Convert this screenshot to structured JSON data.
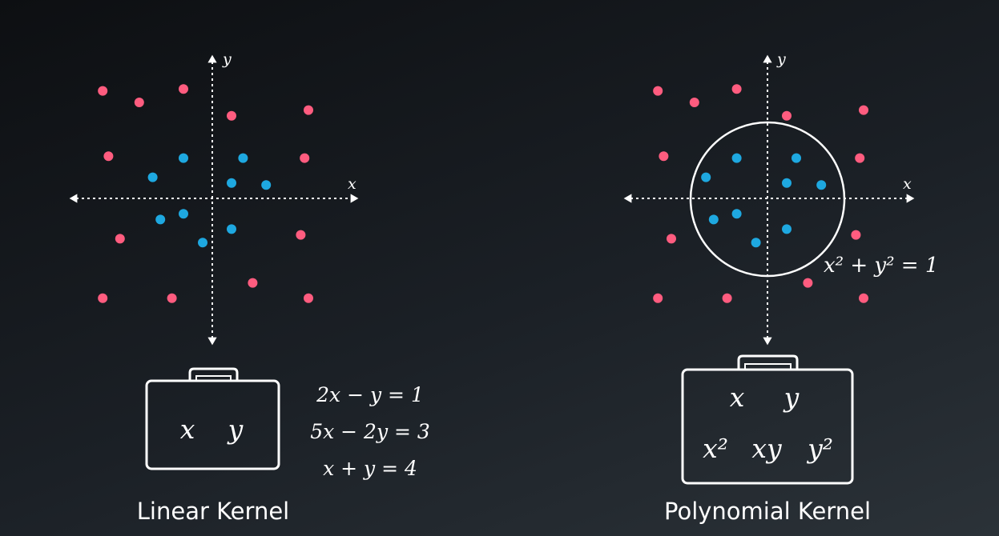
{
  "colors": {
    "outer_points": "#ff5c7f",
    "inner_points": "#1ea8e0",
    "lines": "#ffffff"
  },
  "linear": {
    "caption": "Linear Kernel",
    "x_label": "x",
    "y_label": "y",
    "box_vars": [
      "x",
      "y"
    ],
    "equations": [
      "2x − y = 1",
      "5x − 2y = 3",
      "x + y = 4"
    ],
    "outer_points": [
      [
        -2.85,
        2.8
      ],
      [
        -1.9,
        2.5
      ],
      [
        -0.75,
        2.85
      ],
      [
        0.5,
        2.15
      ],
      [
        2.5,
        2.3
      ],
      [
        -2.7,
        1.1
      ],
      [
        2.4,
        1.05
      ],
      [
        -2.4,
        -1.05
      ],
      [
        2.3,
        -0.95
      ],
      [
        1.05,
        -2.2
      ],
      [
        -2.85,
        -2.6
      ],
      [
        -1.05,
        -2.6
      ],
      [
        2.5,
        -2.6
      ]
    ],
    "inner_points": [
      [
        -0.75,
        1.05
      ],
      [
        0.8,
        1.05
      ],
      [
        -1.55,
        0.55
      ],
      [
        0.5,
        0.4
      ],
      [
        1.4,
        0.35
      ],
      [
        -1.35,
        -0.55
      ],
      [
        -0.75,
        -0.4
      ],
      [
        0.5,
        -0.8
      ],
      [
        -0.25,
        -1.15
      ]
    ]
  },
  "polynomial": {
    "caption": "Polynomial Kernel",
    "x_label": "x",
    "y_label": "y",
    "circle_label": "x² + y² = 1",
    "box_row1": [
      "x",
      "y"
    ],
    "box_row2": [
      "x²",
      "xy",
      "y²"
    ],
    "outer_points": [
      [
        -2.85,
        2.8
      ],
      [
        -1.9,
        2.5
      ],
      [
        -0.8,
        2.85
      ],
      [
        0.5,
        2.15
      ],
      [
        2.5,
        2.3
      ],
      [
        -2.7,
        1.1
      ],
      [
        2.4,
        1.05
      ],
      [
        -2.5,
        -1.05
      ],
      [
        2.3,
        -0.95
      ],
      [
        1.05,
        -2.2
      ],
      [
        -2.85,
        -2.6
      ],
      [
        -1.05,
        -2.6
      ],
      [
        2.5,
        -2.6
      ]
    ],
    "inner_points": [
      [
        -0.8,
        1.05
      ],
      [
        0.75,
        1.05
      ],
      [
        -1.6,
        0.55
      ],
      [
        0.5,
        0.4
      ],
      [
        1.4,
        0.35
      ],
      [
        -1.4,
        -0.55
      ],
      [
        -0.8,
        -0.4
      ],
      [
        0.5,
        -0.8
      ],
      [
        -0.3,
        -1.15
      ]
    ]
  }
}
